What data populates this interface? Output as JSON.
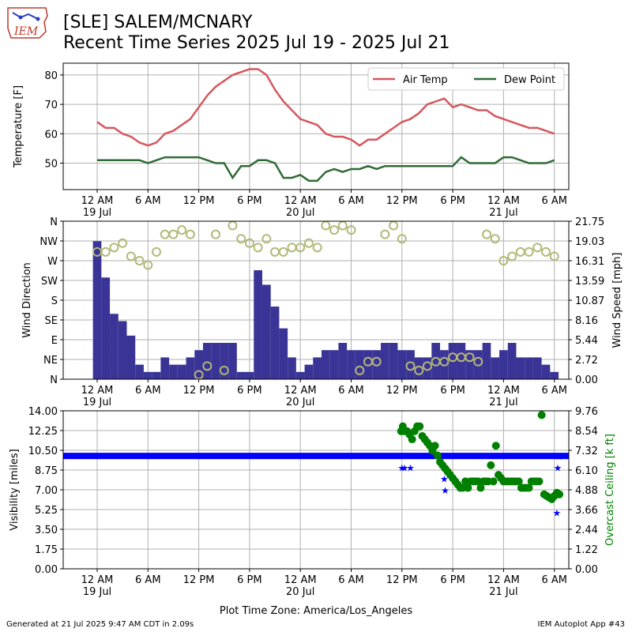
{
  "header": {
    "title_line1": "[SLE] SALEM/MCNARY",
    "title_line2": "Recent Time Series 2025 Jul 19 - 2025 Jul 21",
    "logo_text": "IEM"
  },
  "footer": {
    "generated": "Generated at 21 Jul 2025 9:47 AM CDT in 2.09s",
    "app": "IEM Autoplot App #43"
  },
  "colors": {
    "air_temp": "#d6565e",
    "dew_point": "#2e6b34",
    "wind_dir": "#b4b878",
    "wind_speed": "#3a3496",
    "visibility": "#0000ff",
    "ceiling": "#008000",
    "grid": "#b0b0b0"
  },
  "chart_data": [
    {
      "type": "line",
      "ylabel": "Temperature [F]",
      "ylim": [
        41,
        84
      ],
      "yticks": [
        50,
        60,
        70,
        80
      ],
      "x_ticks": [
        "12 AM\n19 Jul",
        "6 AM",
        "12 PM",
        "6 PM",
        "12 AM\n20 Jul",
        "6 AM",
        "12 PM",
        "6 PM",
        "12 AM\n21 Jul",
        "6 AM"
      ],
      "legend": "top-right",
      "grid": true,
      "series": [
        {
          "name": "Air Temp",
          "x_hours": [
            0,
            1,
            2,
            3,
            4,
            5,
            6,
            7,
            8,
            9,
            10,
            11,
            12,
            13,
            14,
            15,
            16,
            17,
            18,
            19,
            20,
            21,
            22,
            23,
            24,
            25,
            26,
            27,
            28,
            29,
            30,
            31,
            32,
            33,
            34,
            35,
            36,
            37,
            38,
            39,
            40,
            41,
            42,
            43,
            44,
            45,
            46,
            47,
            48,
            49,
            50,
            51,
            52,
            53,
            54
          ],
          "values": [
            64,
            62,
            62,
            60,
            59,
            57,
            56,
            57,
            60,
            61,
            63,
            65,
            69,
            73,
            76,
            78,
            80,
            81,
            82,
            82,
            80,
            75,
            71,
            68,
            65,
            64,
            63,
            60,
            59,
            59,
            58,
            56,
            58,
            58,
            60,
            62,
            64,
            65,
            67,
            70,
            71,
            72,
            69,
            70,
            69,
            68,
            68,
            66,
            65,
            64,
            63,
            62,
            62,
            61,
            60
          ]
        },
        {
          "name": "Dew Point",
          "x_hours": [
            0,
            1,
            2,
            3,
            4,
            5,
            6,
            7,
            8,
            9,
            10,
            11,
            12,
            13,
            14,
            15,
            16,
            17,
            18,
            19,
            20,
            21,
            22,
            23,
            24,
            25,
            26,
            27,
            28,
            29,
            30,
            31,
            32,
            33,
            34,
            35,
            36,
            37,
            38,
            39,
            40,
            41,
            42,
            43,
            44,
            45,
            46,
            47,
            48,
            49,
            50,
            51,
            52,
            53,
            54
          ],
          "values": [
            51,
            51,
            51,
            51,
            51,
            51,
            50,
            51,
            52,
            52,
            52,
            52,
            52,
            51,
            50,
            50,
            45,
            49,
            49,
            51,
            51,
            50,
            45,
            45,
            46,
            44,
            44,
            47,
            48,
            47,
            48,
            48,
            49,
            48,
            49,
            49,
            49,
            49,
            49,
            49,
            49,
            49,
            49,
            52,
            50,
            50,
            50,
            50,
            52,
            52,
            51,
            50,
            50,
            50,
            51
          ]
        }
      ]
    },
    {
      "type": "scatter",
      "ylabel": "Wind Direction",
      "ylabel_right": "Wind Speed [mph]",
      "ytick_labels": [
        "N",
        "NE",
        "E",
        "SE",
        "S",
        "SW",
        "W",
        "NW",
        "N"
      ],
      "ylim": [
        0,
        360
      ],
      "y2ticks": [
        "0.00",
        "2.72",
        "5.44",
        "8.16",
        "10.87",
        "13.59",
        "16.31",
        "19.03",
        "21.75"
      ],
      "y2lim": [
        0,
        21.75
      ],
      "x_ticks": [
        "12 AM\n19 Jul",
        "6 AM",
        "12 PM",
        "6 PM",
        "12 AM\n20 Jul",
        "6 AM",
        "12 PM",
        "6 PM",
        "12 AM\n21 Jul",
        "6 AM"
      ],
      "grid": true,
      "wind_speed_hourly_mph": [
        19,
        14,
        9,
        8,
        6,
        2,
        1,
        1,
        3,
        2,
        2,
        3,
        4,
        5,
        5,
        5,
        5,
        1,
        1,
        15,
        13,
        10,
        7,
        3,
        1,
        2,
        3,
        4,
        4,
        5,
        4,
        4,
        4,
        4,
        5,
        5,
        4,
        4,
        3,
        3,
        5,
        4,
        5,
        5,
        4,
        4,
        5,
        3,
        4,
        5,
        3,
        3,
        3,
        2,
        1
      ],
      "wind_dir_hourly_deg": [
        290,
        290,
        300,
        310,
        280,
        270,
        260,
        290,
        330,
        330,
        340,
        330,
        10,
        30,
        330,
        20,
        350,
        320,
        310,
        300,
        320,
        290,
        290,
        300,
        300,
        310,
        300,
        350,
        340,
        350,
        340,
        20,
        40,
        40,
        330,
        350,
        320,
        30,
        20,
        30,
        40,
        40,
        50,
        50,
        50,
        40,
        330,
        320,
        270,
        280,
        290,
        290,
        300,
        290,
        280
      ]
    },
    {
      "type": "scatter",
      "ylabel": "Visibility [miles]",
      "ylabel_right": "Overcast Ceiling [k ft]",
      "yticks": [
        "0.00",
        "1.75",
        "3.50",
        "5.25",
        "7.00",
        "8.75",
        "10.50",
        "12.25",
        "14.00"
      ],
      "ylim": [
        0,
        14
      ],
      "y2ticks": [
        "0.00",
        "1.22",
        "2.44",
        "3.66",
        "4.88",
        "6.10",
        "7.32",
        "8.54",
        "9.76"
      ],
      "y2lim": [
        0,
        9.76
      ],
      "x_ticks": [
        "12 AM\n19 Jul",
        "6 AM",
        "12 PM",
        "6 PM",
        "12 AM\n20 Jul",
        "6 AM",
        "12 PM",
        "6 PM",
        "12 AM\n21 Jul",
        "6 AM"
      ],
      "xlabel": "Plot Time Zone: America/Los_Angeles",
      "grid": true,
      "visibility_miles": {
        "baseline": 10,
        "exceptions_hours": [
          36.0,
          36.3,
          37.0,
          41.0,
          41.1,
          54.3,
          54.4,
          54.6
        ],
        "exceptions_values": [
          9,
          9,
          9,
          8,
          7,
          5,
          9,
          10
        ]
      },
      "ceiling_kft": {
        "x_hours": [
          35.9,
          36.1,
          36.3,
          36.6,
          36.9,
          37.2,
          37.5,
          37.8,
          38.1,
          38.4,
          38.7,
          39.0,
          39.3,
          39.6,
          39.9,
          40.2,
          40.5,
          40.8,
          41.1,
          41.4,
          41.7,
          42.0,
          42.3,
          42.6,
          42.9,
          43.2,
          43.5,
          43.8,
          44.1,
          44.4,
          44.7,
          45.0,
          45.3,
          45.6,
          45.9,
          46.2,
          46.5,
          46.8,
          47.1,
          47.4,
          47.7,
          48.0,
          48.3,
          48.6,
          48.9,
          49.2,
          49.5,
          49.8,
          50.1,
          50.4,
          50.7,
          51.0,
          51.3,
          51.6,
          51.9,
          52.2,
          52.5,
          52.8,
          53.1,
          53.4,
          53.7,
          54.0,
          54.3,
          54.6
        ],
        "values": [
          8.5,
          8.8,
          8.5,
          8.5,
          8.3,
          8.0,
          8.5,
          8.8,
          8.8,
          8.2,
          8.0,
          7.8,
          7.6,
          7.3,
          7.6,
          7.0,
          6.6,
          6.4,
          6.2,
          6.0,
          5.8,
          5.6,
          5.4,
          5.2,
          5.0,
          5.0,
          5.4,
          5.0,
          5.4,
          5.4,
          5.4,
          5.4,
          5.0,
          5.4,
          5.4,
          5.4,
          6.4,
          5.4,
          7.6,
          5.8,
          5.6,
          5.4,
          5.4,
          5.4,
          5.4,
          5.4,
          5.4,
          5.4,
          5.0,
          5.0,
          5.0,
          5.0,
          5.4,
          5.4,
          5.4,
          5.4,
          9.5,
          4.6,
          4.5,
          4.4,
          4.3,
          4.5,
          4.7,
          4.6
        ]
      }
    }
  ]
}
